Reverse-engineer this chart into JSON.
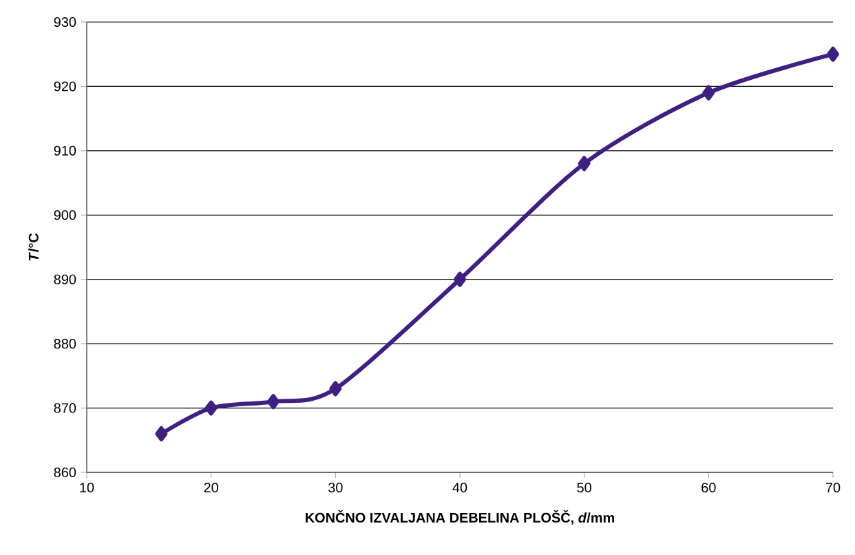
{
  "chart_data": {
    "type": "line",
    "xlabel": "KONČNO IZVALJANA DEBELINA PLOŠČ, *d*/mm",
    "ylabel": "*T*/°C",
    "x": [
      16,
      20,
      25,
      30,
      40,
      50,
      60,
      70
    ],
    "series": [
      {
        "color": "#3f1f7f",
        "values": [
          866,
          870,
          871,
          873,
          890,
          908,
          919,
          925
        ]
      }
    ],
    "xlim": [
      10,
      70
    ],
    "xticks": [
      10,
      20,
      30,
      40,
      50,
      60,
      70
    ],
    "ylim": [
      860,
      930
    ],
    "yticks": [
      860,
      870,
      880,
      890,
      900,
      910,
      920,
      930
    ],
    "grid": "y",
    "marker": "diamond",
    "line_style": "solid"
  }
}
